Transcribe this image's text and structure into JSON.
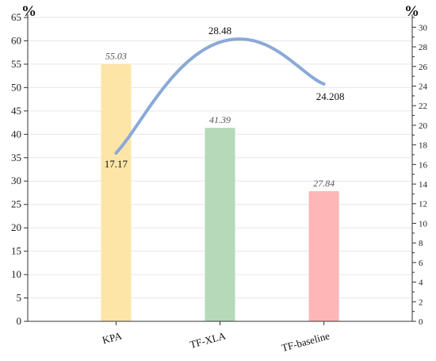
{
  "chart_data": {
    "type": "bar+line",
    "categories": [
      "KPA",
      "TF-XLA",
      "TF-baseline"
    ],
    "bar_series": {
      "values": [
        55.03,
        41.39,
        27.84
      ],
      "labels": [
        "55.03",
        "41.39",
        "27.84"
      ],
      "colors": [
        "#fde5a8",
        "#b6d9b9",
        "#ffb6b6"
      ],
      "axis": "left"
    },
    "line_series": {
      "values": [
        17.17,
        28.48,
        24.208
      ],
      "labels": [
        "17.17",
        "28.48",
        "24.208"
      ],
      "color": "#8aa9d6",
      "axis": "right"
    },
    "left_axis": {
      "unit": "%",
      "min": 0,
      "max": 65,
      "step": 5
    },
    "right_axis": {
      "unit": "%",
      "min": 0,
      "max": 31,
      "step": 2
    },
    "grid": true,
    "legend": "none"
  }
}
